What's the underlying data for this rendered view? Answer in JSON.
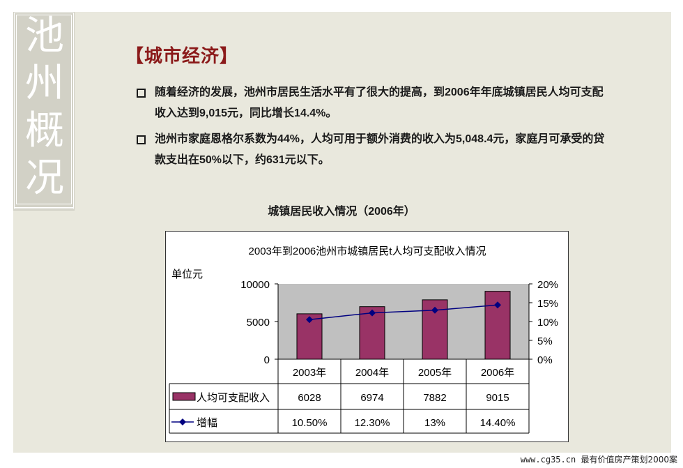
{
  "side_title": [
    "池",
    "州",
    "概",
    "况"
  ],
  "section_title": "【城市经济】",
  "bullets": [
    "随着经济的发展，池州市居民生活水平有了很大的提高，到2006年年底城镇居民人均可支配收入达到9,015元，同比增长14.4%。",
    "池州市家庭恩格尔系数为44%，人均可用于额外消费的收入为5,048.4元，家庭月可承受的贷款支出在50%以下，约631元以下。"
  ],
  "chart_caption": "城镇居民收入情况（2006年）",
  "footer": {
    "url": "www.cg35.cn",
    "label": "最有价值房产策划2000案"
  },
  "colors": {
    "bar": "#993366",
    "line": "#000080",
    "plot_bg": "#c0c0c0"
  },
  "chart_data": {
    "type": "bar",
    "title": "2003年到2006池州市城镇居民t人均可支配收入情况",
    "ylabel": "单位元",
    "categories": [
      "2003年",
      "2004年",
      "2005年",
      "2006年"
    ],
    "ylim": [
      0,
      10000
    ],
    "yticks": [
      "10000",
      "5000",
      "0"
    ],
    "y2lim": [
      0,
      20
    ],
    "y2ticks": [
      "20%",
      "15%",
      "10%",
      "5%",
      "0%"
    ],
    "grid": false,
    "series": [
      {
        "name": "人均可支配收入",
        "type": "bar",
        "axis": "left",
        "values": [
          6028,
          6974,
          7882,
          9015
        ],
        "labels": [
          "6028",
          "6974",
          "7882",
          "9015"
        ]
      },
      {
        "name": "增幅",
        "type": "line",
        "axis": "right",
        "values": [
          10.5,
          12.3,
          13,
          14.4
        ],
        "labels": [
          "10.50%",
          "12.30%",
          "13%",
          "14.40%"
        ]
      }
    ]
  }
}
